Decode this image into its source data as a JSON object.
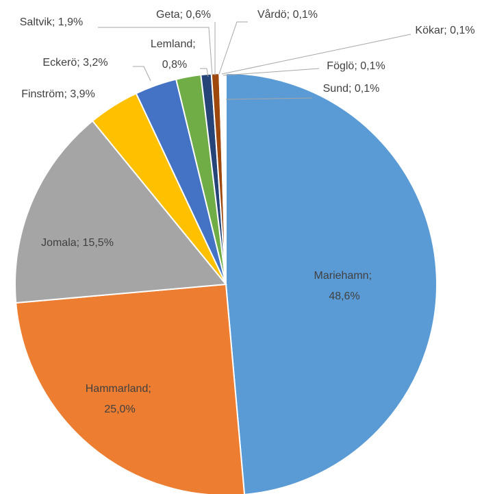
{
  "chart_data": {
    "type": "pie",
    "categories": [
      "Mariehamn",
      "Hammarland",
      "Jomala",
      "Finström",
      "Eckerö",
      "Saltvik",
      "Lemland",
      "Geta",
      "Vårdö",
      "Kökar",
      "Föglö",
      "Sund"
    ],
    "values": [
      48.6,
      25.0,
      15.5,
      3.9,
      3.2,
      1.9,
      0.8,
      0.6,
      0.1,
      0.1,
      0.1,
      0.1
    ],
    "value_labels": [
      "48,6%",
      "25,0%",
      "15,5%",
      "3,9%",
      "3,2%",
      "1,9%",
      "0,8%",
      "0,6%",
      "0,1%",
      "0,1%",
      "0,1%",
      "0,1%"
    ],
    "label_separator": "; ",
    "colors": [
      "#5b9bd5",
      "#ed7d31",
      "#a5a5a5",
      "#ffc000",
      "#4472c4",
      "#70ad47",
      "#264478",
      "#9e480e",
      "#636363",
      "#997300",
      "#255e91",
      "#43682b"
    ]
  }
}
